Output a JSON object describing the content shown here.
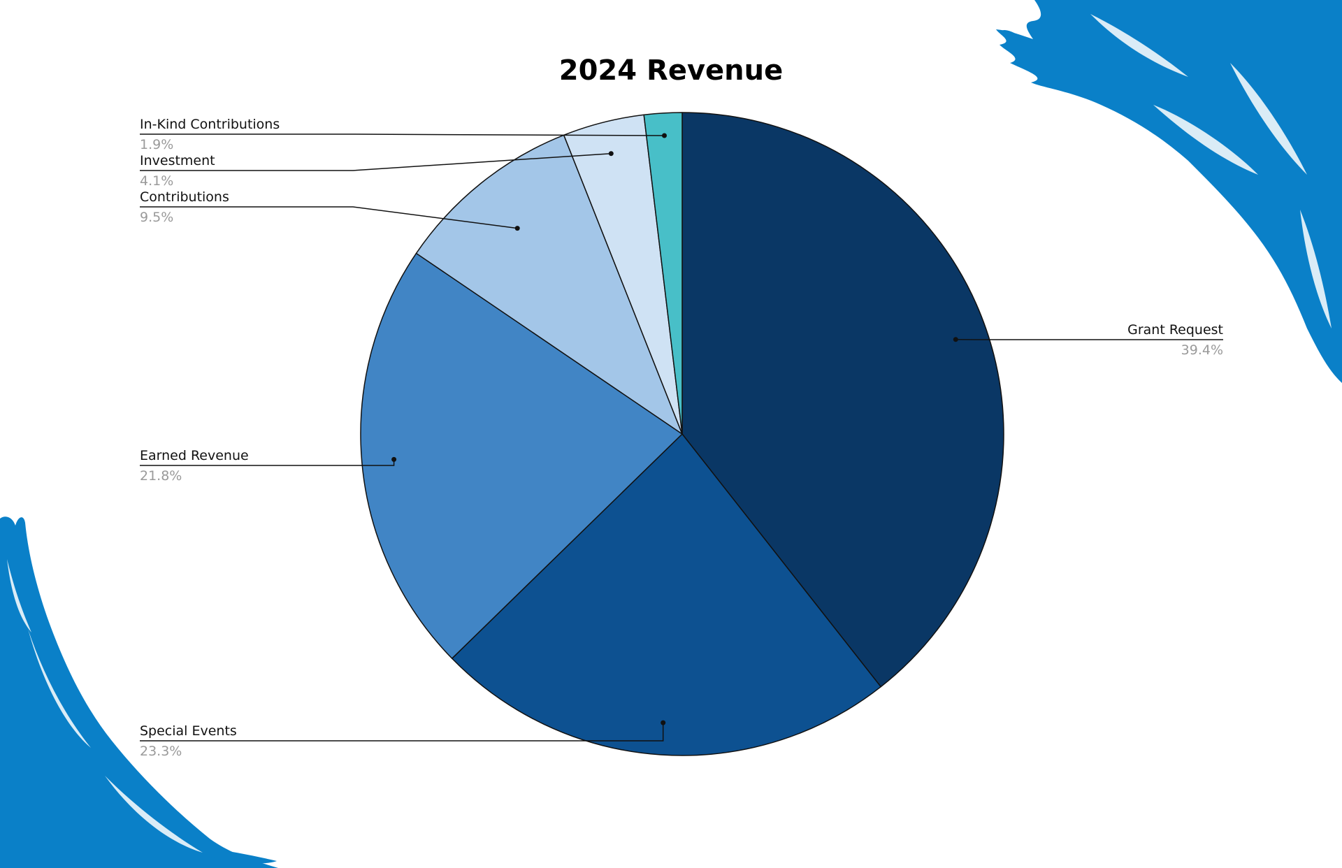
{
  "colors": {
    "brush": "#0a80c8",
    "background": "#ffffff"
  },
  "chart_data": {
    "type": "pie",
    "title": "2024 Revenue",
    "start_angle_deg": 0,
    "direction": "clockwise",
    "legend": "leader-line labels",
    "slices": [
      {
        "label": "Grant Request",
        "value": 39.4,
        "display": "39.4%",
        "color": "#0a3765"
      },
      {
        "label": "Special Events",
        "value": 23.3,
        "display": "23.3%",
        "color": "#0d5191"
      },
      {
        "label": "Earned Revenue",
        "value": 21.8,
        "display": "21.8%",
        "color": "#4185c5"
      },
      {
        "label": "Contributions",
        "value": 9.5,
        "display": "9.5%",
        "color": "#a3c6e8"
      },
      {
        "label": "Investment",
        "value": 4.1,
        "display": "4.1%",
        "color": "#cfe2f4"
      },
      {
        "label": "In-Kind Contributions",
        "value": 1.9,
        "display": "1.9%",
        "color": "#48bfc8"
      }
    ]
  }
}
